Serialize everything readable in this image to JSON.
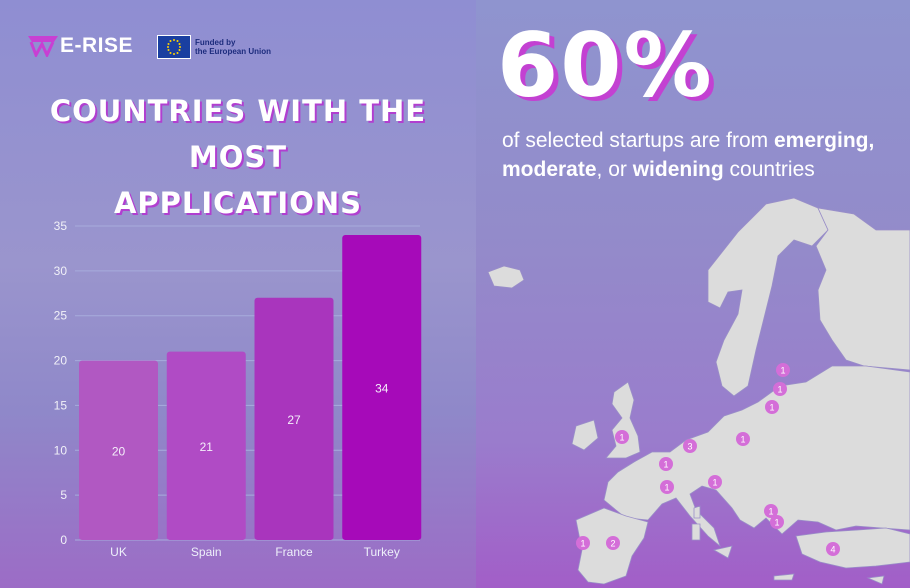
{
  "brand": {
    "logo_text": "E-RISE",
    "eu_line1": "Funded by",
    "eu_line2": "the European Union"
  },
  "left": {
    "title_line1": "COUNTRIES WITH THE MOST",
    "title_line2": "APPLICATIONS"
  },
  "chart_data": {
    "type": "bar",
    "categories": [
      "UK",
      "Spain",
      "France",
      "Turkey"
    ],
    "values": [
      20,
      21,
      27,
      34
    ],
    "ylim": [
      0,
      35
    ],
    "yticks": [
      0,
      5,
      10,
      15,
      20,
      25,
      30,
      35
    ],
    "grid": true,
    "colors": [
      "#b158c2",
      "#b04bc5",
      "#a935bd",
      "#a60ab9"
    ]
  },
  "right": {
    "stat": "60%",
    "text_a": "of selected startups are from ",
    "bold_1": "emerging,",
    "text_b": "moderate",
    "text_c": ", or ",
    "bold_3": "widening",
    "text_d": " countries"
  },
  "map_markers": [
    {
      "label": "1"
    },
    {
      "label": "3"
    },
    {
      "label": "1"
    },
    {
      "label": "1"
    },
    {
      "label": "1"
    },
    {
      "label": "1"
    },
    {
      "label": "1"
    },
    {
      "label": "1"
    },
    {
      "label": "1"
    },
    {
      "label": "1"
    },
    {
      "label": "1"
    },
    {
      "label": "2"
    },
    {
      "label": "1"
    },
    {
      "label": "4"
    }
  ],
  "colors": {
    "accent": "#c341d2",
    "marker": "#d46ed8"
  }
}
